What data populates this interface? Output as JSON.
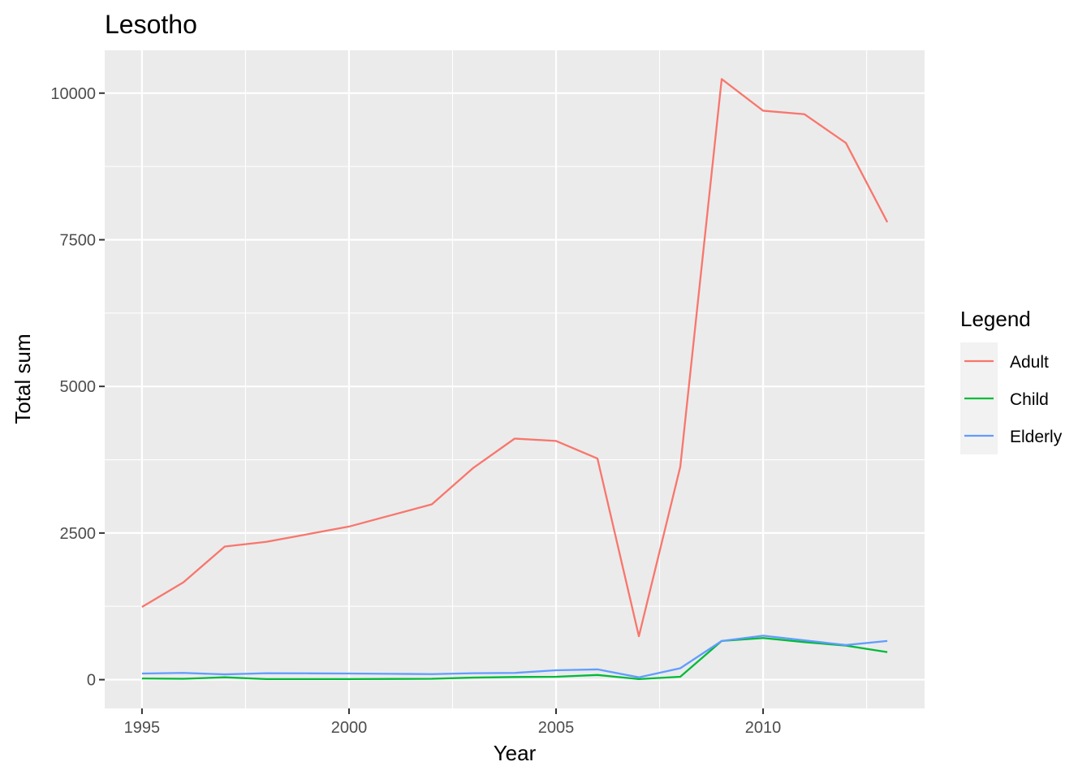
{
  "chart_data": {
    "type": "line",
    "title": "Lesotho",
    "xlabel": "Year",
    "ylabel": "Total sum",
    "x": [
      1995,
      1996,
      1997,
      1998,
      1999,
      2000,
      2001,
      2002,
      2003,
      2004,
      2005,
      2006,
      2007,
      2008,
      2009,
      2010,
      2011,
      2012,
      2013
    ],
    "series": [
      {
        "name": "Adult",
        "color": "#F8766D",
        "values": [
          1240,
          1660,
          2270,
          2350,
          2480,
          2610,
          2800,
          2990,
          3610,
          4110,
          4070,
          3770,
          740,
          3630,
          10240,
          9700,
          9640,
          9150,
          7800
        ]
      },
      {
        "name": "Child",
        "color": "#00BA38",
        "values": [
          20,
          15,
          40,
          10,
          10,
          10,
          12,
          15,
          35,
          45,
          50,
          80,
          10,
          50,
          660,
          710,
          640,
          580,
          470
        ]
      },
      {
        "name": "Elderly",
        "color": "#619CFF",
        "values": [
          105,
          115,
          90,
          110,
          108,
          105,
          100,
          95,
          110,
          115,
          160,
          175,
          40,
          195,
          660,
          750,
          670,
          590,
          660
        ]
      }
    ],
    "xlim": [
      1994.1,
      2013.9
    ],
    "ylim": [
      -490,
      10730
    ],
    "x_ticks": [
      1995,
      2000,
      2005,
      2010
    ],
    "x_tick_labels": [
      "1995",
      "2000",
      "2005",
      "2010"
    ],
    "x_minor_ticks": [
      1997.5,
      2002.5,
      2007.5,
      2012.5
    ],
    "y_ticks": [
      0,
      2500,
      5000,
      7500,
      10000
    ],
    "y_tick_labels": [
      "0",
      "2500",
      "5000",
      "7500",
      "10000"
    ],
    "y_minor_ticks": [
      1250,
      3750,
      6250,
      8750
    ],
    "grid": true,
    "panel_background": "#EBEBEB",
    "legend": {
      "title": "Legend",
      "position": "right",
      "entries": [
        "Adult",
        "Child",
        "Elderly"
      ]
    }
  }
}
